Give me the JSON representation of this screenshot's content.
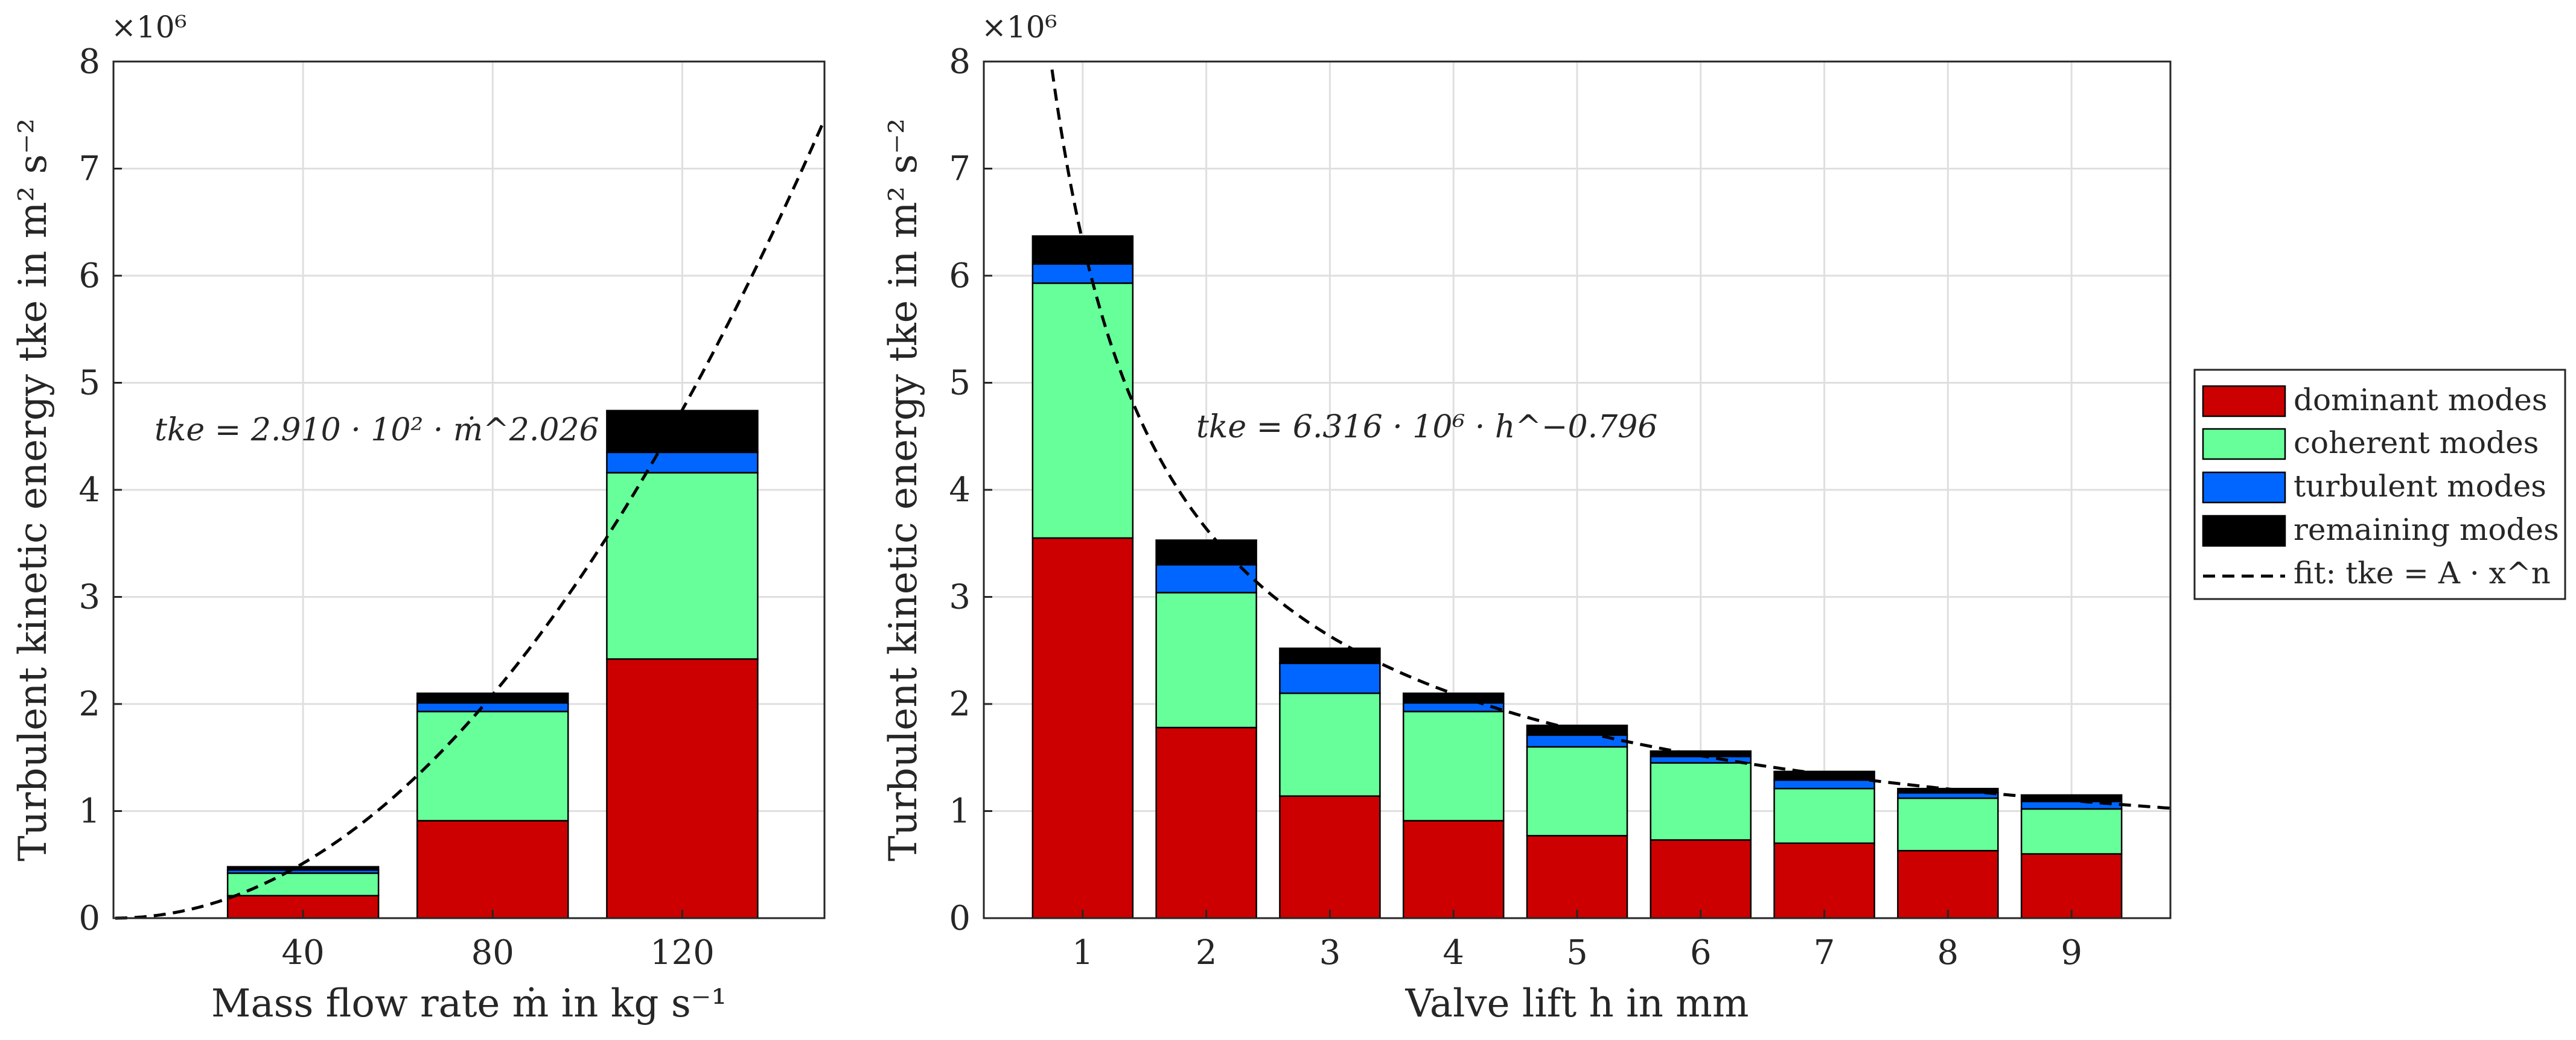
{
  "colors": {
    "dominant": "#cc0000",
    "coherent": "#66ff99",
    "turbulent": "#0066ff",
    "remaining": "#000000",
    "grid": "#dfdfdf",
    "text": "#262626"
  },
  "legend": {
    "location": "outside-right",
    "entries": [
      "dominant modes",
      "coherent modes",
      "turbulent modes",
      "remaining modes",
      "fit: tke = A · x^n"
    ]
  },
  "chart_data": [
    {
      "type": "bar",
      "stacked": true,
      "xlabel": "Mass flow rate ṁ in kg s⁻¹",
      "ylabel": "Turbulent kinetic energy tke in m² s⁻²",
      "y_multiplier": "×10⁶",
      "categories": [
        "40",
        "80",
        "120"
      ],
      "x": [
        40,
        80,
        120
      ],
      "xlim": [
        0,
        150
      ],
      "ylim": [
        0,
        8
      ],
      "yticks": [
        "0",
        "1",
        "2",
        "3",
        "4",
        "5",
        "6",
        "7",
        "8"
      ],
      "grid": true,
      "series": [
        {
          "name": "dominant modes",
          "values": [
            0.21,
            0.91,
            2.42
          ]
        },
        {
          "name": "coherent modes",
          "values": [
            0.21,
            1.02,
            1.74
          ]
        },
        {
          "name": "turbulent modes",
          "values": [
            0.03,
            0.08,
            0.19
          ]
        },
        {
          "name": "remaining modes",
          "values": [
            0.03,
            0.09,
            0.39
          ]
        }
      ],
      "fit": {
        "name": "fit: tke = A · x^n",
        "A": 291.0,
        "n": 2.026,
        "equation": "tke = 2.910 · 10² · ṁ^2.026"
      }
    },
    {
      "type": "bar",
      "stacked": true,
      "xlabel": "Valve lift h in mm",
      "ylabel": "Turbulent kinetic energy tke in m² s⁻²",
      "y_multiplier": "×10⁶",
      "categories": [
        "1",
        "2",
        "3",
        "4",
        "5",
        "6",
        "7",
        "8",
        "9"
      ],
      "x": [
        1,
        2,
        3,
        4,
        5,
        6,
        7,
        8,
        9
      ],
      "xlim": [
        0.2,
        9.8
      ],
      "ylim": [
        0,
        8
      ],
      "yticks": [
        "0",
        "1",
        "2",
        "3",
        "4",
        "5",
        "6",
        "7",
        "8"
      ],
      "grid": true,
      "series": [
        {
          "name": "dominant modes",
          "values": [
            3.55,
            1.78,
            1.14,
            0.91,
            0.77,
            0.73,
            0.7,
            0.63,
            0.6
          ]
        },
        {
          "name": "coherent modes",
          "values": [
            2.38,
            1.26,
            0.96,
            1.02,
            0.83,
            0.72,
            0.51,
            0.49,
            0.42
          ]
        },
        {
          "name": "turbulent modes",
          "values": [
            0.18,
            0.26,
            0.28,
            0.08,
            0.11,
            0.06,
            0.08,
            0.05,
            0.07
          ]
        },
        {
          "name": "remaining modes",
          "values": [
            0.26,
            0.23,
            0.14,
            0.09,
            0.09,
            0.05,
            0.08,
            0.04,
            0.06
          ]
        }
      ],
      "fit": {
        "name": "fit: tke = A · x^n",
        "A": 6316000,
        "n": -0.796,
        "equation": "tke = 6.316 · 10⁶ · h^−0.796"
      }
    }
  ]
}
